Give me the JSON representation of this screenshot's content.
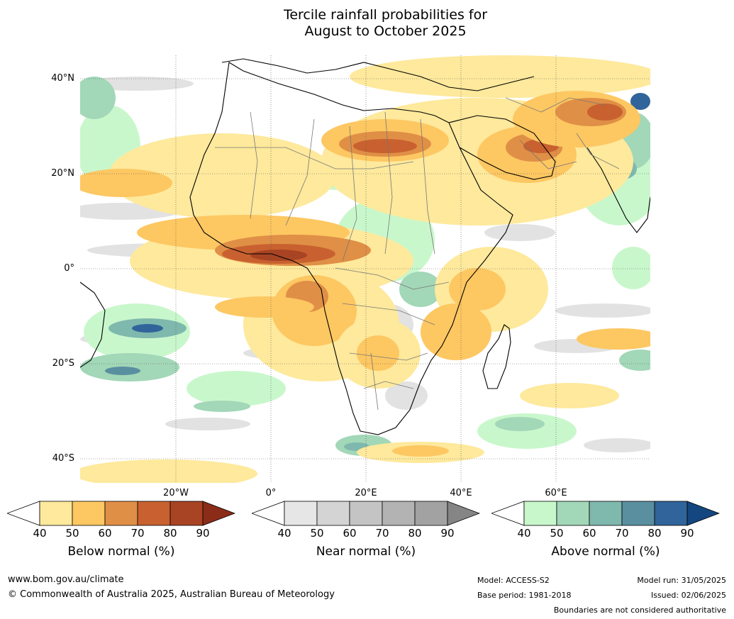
{
  "title": {
    "line1": "Tercile rainfall probabilities for",
    "line2": "August to October 2025"
  },
  "map": {
    "lat_labels": [
      "40°N",
      "20°N",
      "0°",
      "20°S",
      "40°S"
    ],
    "lon_labels": [
      "20°W",
      "0°",
      "20°E",
      "40°E",
      "60°E"
    ]
  },
  "colorbars": [
    {
      "title": "Below normal (%)",
      "ticks": [
        "40",
        "50",
        "60",
        "70",
        "80",
        "90"
      ],
      "colors": [
        "#ffffff",
        "#fee99c",
        "#fdc762",
        "#e08f46",
        "#c8612f",
        "#a84423",
        "#8b2c19"
      ]
    },
    {
      "title": "Near normal (%)",
      "ticks": [
        "40",
        "50",
        "60",
        "70",
        "80",
        "90"
      ],
      "colors": [
        "#ffffff",
        "#e6e6e6",
        "#d4d4d4",
        "#c4c4c4",
        "#b3b3b3",
        "#a2a2a2",
        "#858585"
      ]
    },
    {
      "title": "Above normal (%)",
      "ticks": [
        "40",
        "50",
        "60",
        "70",
        "80",
        "90"
      ],
      "colors": [
        "#ffffff",
        "#c9f7cc",
        "#a2d7b8",
        "#7fb8ad",
        "#5a8fa0",
        "#30649a",
        "#14467f"
      ]
    }
  ],
  "footer": {
    "website": "www.bom.gov.au/climate",
    "copyright": "© Commonwealth of Australia 2025, Australian Bureau of Meteorology",
    "model": "Model: ACCESS-S2",
    "base_period": "Base period: 1981-2018",
    "model_run": "Model run: 31/05/2025",
    "issued": "Issued: 02/06/2025",
    "disclaimer": "Boundaries are not considered authoritative"
  }
}
